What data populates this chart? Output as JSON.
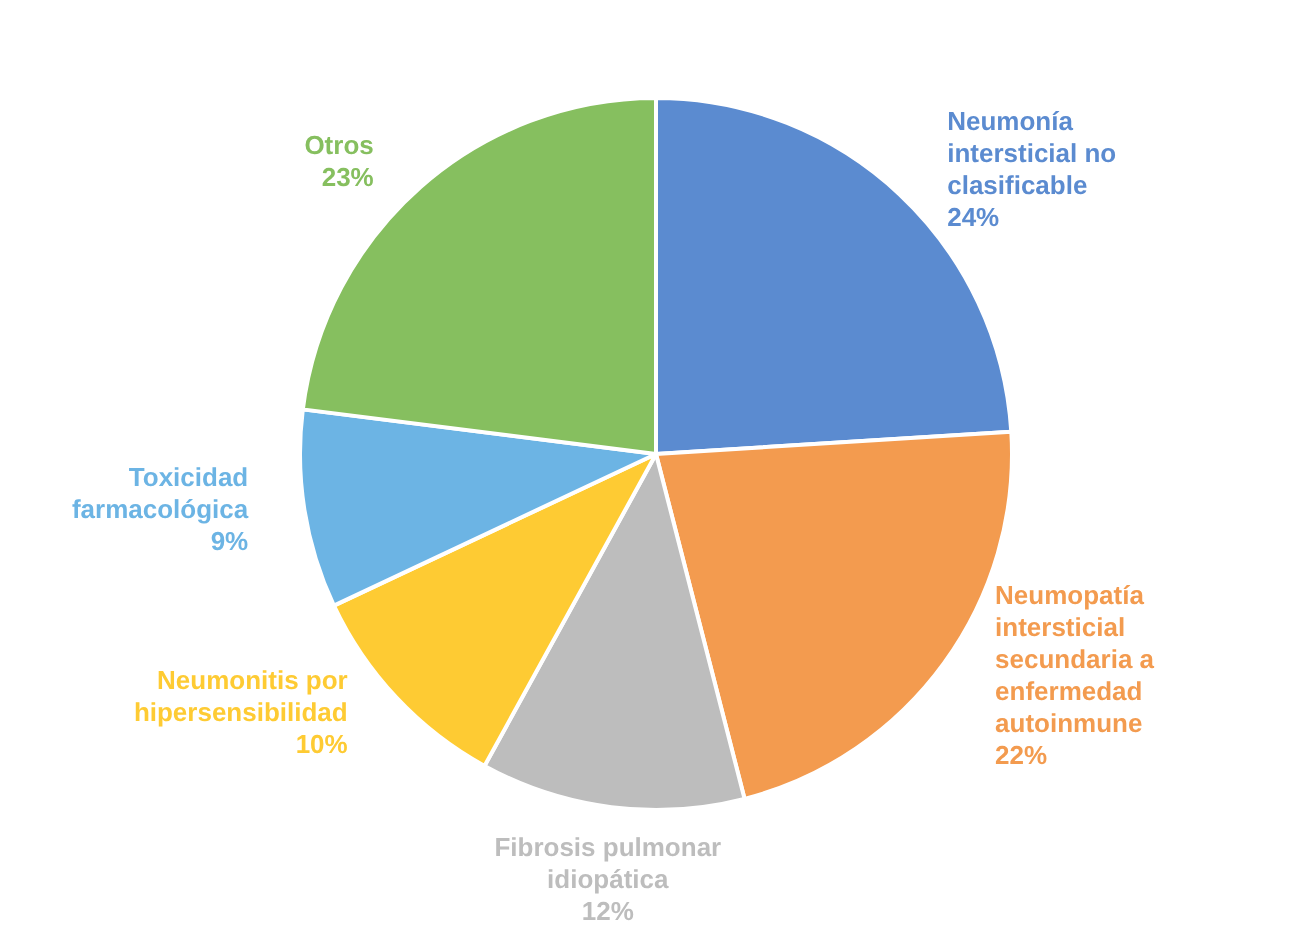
{
  "chart_data": {
    "type": "pie",
    "categories": [
      "Neumonía intersticial no clasificable",
      "Neumopatía intersticial secundaria a enfermedad autoinmune",
      "Fibrosis pulmonar idiopática",
      "Neumonitis por hipersensibilidad",
      "Toxicidad farmacológica",
      "Otros"
    ],
    "values": [
      24,
      22,
      12,
      10,
      9,
      23
    ],
    "value_labels": [
      "24%",
      "22%",
      "12%",
      "10%",
      "9%",
      "23%"
    ],
    "colors": [
      "#5b8bd0",
      "#f39b4f",
      "#bdbdbd",
      "#fecb33",
      "#6cb4e4",
      "#86bf5f"
    ],
    "legend": false
  }
}
